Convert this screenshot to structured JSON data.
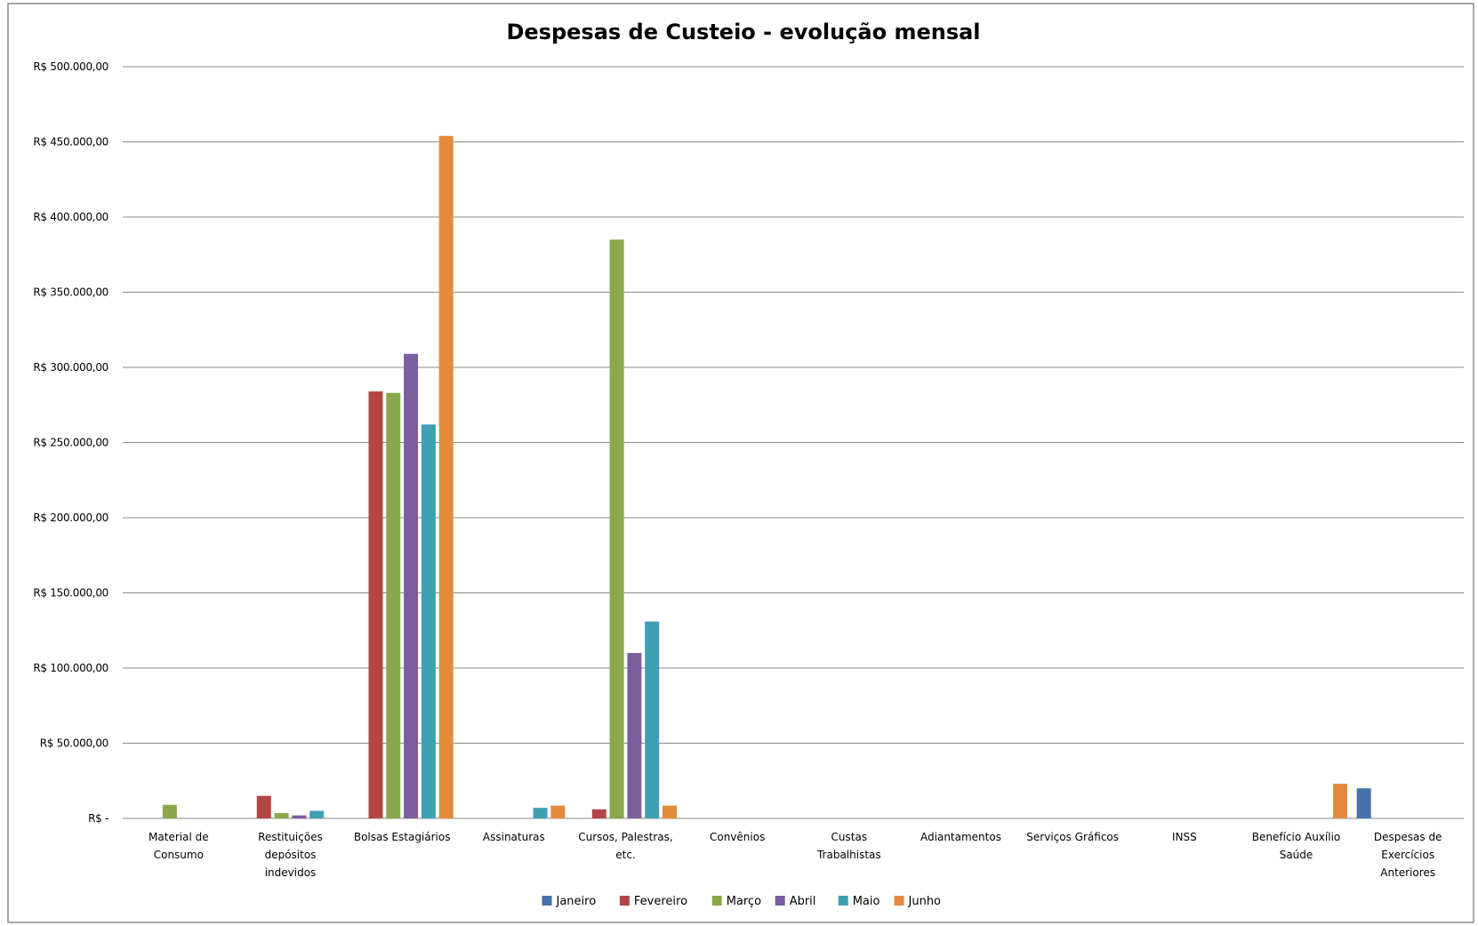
{
  "chart_data": {
    "type": "bar",
    "title": "Despesas de Custeio - evolução mensal",
    "xlabel": "",
    "ylabel": "",
    "ylim": [
      0,
      500000
    ],
    "yticks": [
      0,
      50000,
      100000,
      150000,
      200000,
      250000,
      300000,
      350000,
      400000,
      450000,
      500000
    ],
    "ytick_labels": [
      "R$ -",
      "R$ 50.000,00",
      "R$ 100.000,00",
      "R$ 150.000,00",
      "R$ 200.000,00",
      "R$ 250.000,00",
      "R$ 300.000,00",
      "R$ 350.000,00",
      "R$ 400.000,00",
      "R$ 450.000,00",
      "R$ 500.000,00"
    ],
    "grid": true,
    "legend_position": "bottom",
    "categories": [
      "Material de Consumo",
      "Restituições depósitos indevidos",
      "Bolsas Estagiários",
      "Assinaturas",
      "Cursos, Palestras, etc.",
      "Convênios",
      "Custas Trabalhistas",
      "Adiantamentos",
      "Serviços Gráficos",
      "INSS",
      "Benefício Auxílio Saúde",
      "Despesas de Exercícios Anteriores"
    ],
    "category_label_lines": [
      [
        "Material de",
        "Consumo"
      ],
      [
        "Restituições",
        "depósitos",
        "indevidos"
      ],
      [
        "Bolsas Estagiários"
      ],
      [
        "Assinaturas"
      ],
      [
        "Cursos, Palestras,",
        "etc."
      ],
      [
        "Convênios"
      ],
      [
        "Custas",
        "Trabalhistas"
      ],
      [
        "Adiantamentos"
      ],
      [
        "Serviços Gráficos"
      ],
      [
        "INSS"
      ],
      [
        "Benefício Auxílio",
        "Saúde"
      ],
      [
        "Despesas de",
        "Exercícios",
        "Anteriores"
      ]
    ],
    "series": [
      {
        "name": "Janeiro",
        "color": "#4472a8",
        "values": [
          0,
          0,
          0,
          0,
          0,
          0,
          0,
          0,
          0,
          0,
          0,
          20000
        ]
      },
      {
        "name": "Fevereiro",
        "color": "#b34645",
        "values": [
          0,
          15000,
          284000,
          0,
          6000,
          0,
          0,
          0,
          0,
          0,
          0,
          0
        ]
      },
      {
        "name": "Março",
        "color": "#8aa84a",
        "values": [
          9000,
          3500,
          283000,
          0,
          385000,
          0,
          0,
          0,
          0,
          0,
          0,
          0
        ]
      },
      {
        "name": "Abril",
        "color": "#7b5e9e",
        "values": [
          0,
          2000,
          309000,
          0,
          110000,
          0,
          0,
          0,
          0,
          0,
          0,
          0
        ]
      },
      {
        "name": "Maio",
        "color": "#3f9fb5",
        "values": [
          0,
          5000,
          262000,
          7000,
          131000,
          0,
          0,
          0,
          0,
          0,
          0,
          0
        ]
      },
      {
        "name": "Junho",
        "color": "#e48a3c",
        "values": [
          0,
          0,
          454000,
          8500,
          8500,
          0,
          0,
          0,
          0,
          0,
          23000,
          0
        ]
      }
    ]
  }
}
